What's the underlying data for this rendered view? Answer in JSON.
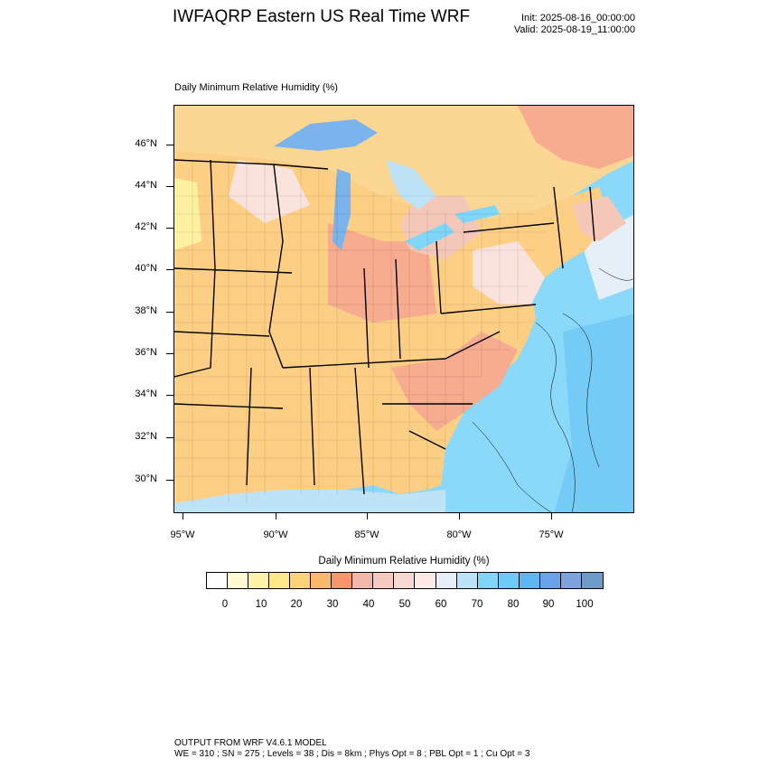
{
  "header": {
    "title": "IWFAQRP Eastern US Real Time WRF",
    "init": "Init: 2025-08-16_00:00:00",
    "valid": "Valid: 2025-08-19_11:00:00"
  },
  "plot": {
    "field_label": "Daily Minimum Relative Humidity    (%)",
    "lat_labels": [
      "46°N",
      "44°N",
      "42°N",
      "40°N",
      "38°N",
      "36°N",
      "34°N",
      "32°N",
      "30°N"
    ],
    "lon_labels": [
      "95°W",
      "90°W",
      "85°W",
      "80°W",
      "75°W"
    ]
  },
  "colorbar": {
    "title": "Daily Minimum Relative Humidity   (%)",
    "tick_labels": [
      "0",
      "10",
      "20",
      "30",
      "40",
      "50",
      "60",
      "70",
      "80",
      "90",
      "100"
    ],
    "colors": [
      "#ffffff",
      "#fffad2",
      "#fff3aa",
      "#ffe88a",
      "#fdd37a",
      "#fbb86e",
      "#f8956a",
      "#f2b7a8",
      "#f6c8bf",
      "#f9d9d3",
      "#fceae7",
      "#e6eef8",
      "#bfe3f6",
      "#7fd6f8",
      "#6ecbf7",
      "#5cb7f2",
      "#6aa2ea",
      "#7ea3dc",
      "#6e9cc7"
    ]
  },
  "map_colors": {
    "ocean": "#8ad8fa",
    "ocean_deep": "#74ccf6",
    "land_orange": "#fccf84",
    "land_salmon": "#f7ab8f",
    "land_pink": "#f5c7b9",
    "land_light": "#fbe3dd",
    "lake": "#7bb3ec",
    "canada": "#fcd793",
    "yellow": "#fdf0a1"
  },
  "footer": {
    "line1": "OUTPUT FROM WRF V4.6.1 MODEL",
    "line2": "WE = 310 ; SN = 275 ; Levels = 38 ; Dis = 8km ; Phys Opt = 8 ; PBL Opt = 1 ; Cu Opt = 3"
  }
}
